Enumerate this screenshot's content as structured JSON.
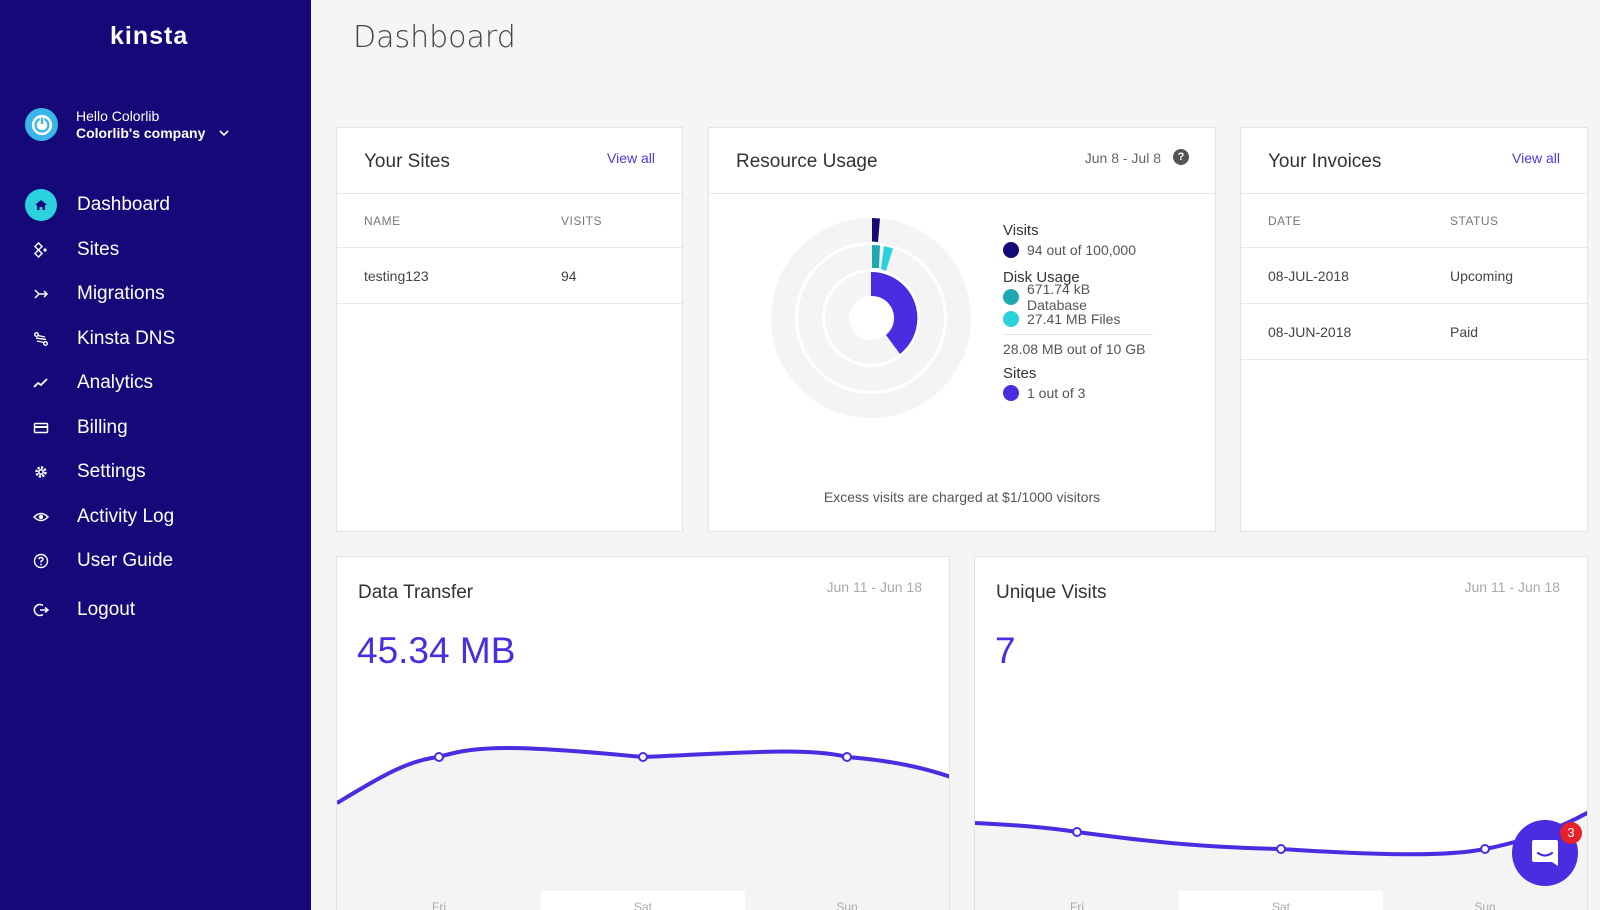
{
  "brand": {
    "logo": "kinsta"
  },
  "user": {
    "greeting": "Hello Colorlib",
    "company": "Colorlib's company"
  },
  "nav": [
    {
      "label": "Dashboard",
      "icon": "home-icon",
      "active": true
    },
    {
      "label": "Sites",
      "icon": "sites-icon"
    },
    {
      "label": "Migrations",
      "icon": "migrations-icon"
    },
    {
      "label": "Kinsta DNS",
      "icon": "dns-icon"
    },
    {
      "label": "Analytics",
      "icon": "analytics-icon"
    },
    {
      "label": "Billing",
      "icon": "billing-icon"
    },
    {
      "label": "Settings",
      "icon": "gear-icon"
    },
    {
      "label": "Activity Log",
      "icon": "eye-icon"
    },
    {
      "label": "User Guide",
      "icon": "help-icon"
    },
    {
      "label": "Logout",
      "icon": "logout-icon"
    }
  ],
  "page": {
    "title": "Dashboard"
  },
  "sites_card": {
    "title": "Your Sites",
    "view_all": "View all",
    "columns": [
      "NAME",
      "VISITS"
    ],
    "rows": [
      {
        "name": "testing123",
        "visits": "94"
      }
    ]
  },
  "resource_card": {
    "title": "Resource Usage",
    "range": "Jun 8 - Jul 8",
    "help": "?",
    "visits_title": "Visits",
    "visits_value": "94 out of 100,000",
    "disk_title": "Disk Usage",
    "disk_db": "671.74 kB Database",
    "disk_files": "27.41 MB Files",
    "disk_total": "28.08 MB out of 10 GB",
    "sites_title": "Sites",
    "sites_value": "1 out of 3",
    "note": "Excess visits are charged at $1/1000 visitors",
    "colors": {
      "visits": "#15097a",
      "database": "#1fa8b0",
      "files": "#2bd1dd",
      "sites": "#4a2de0"
    }
  },
  "invoices_card": {
    "title": "Your Invoices",
    "view_all": "View all",
    "columns": [
      "DATE",
      "STATUS"
    ],
    "rows": [
      {
        "date": "08-JUL-2018",
        "status": "Upcoming"
      },
      {
        "date": "08-JUN-2018",
        "status": "Paid"
      }
    ]
  },
  "data_transfer": {
    "title": "Data Transfer",
    "range": "Jun 11 - Jun 18",
    "value": "45.34 MB"
  },
  "unique_visits": {
    "title": "Unique Visits",
    "range": "Jun 11 - Jun 18",
    "value": "7"
  },
  "chart_data": [
    {
      "type": "line",
      "title": "Data Transfer",
      "categories": [
        "Fri",
        "Sat",
        "Sun"
      ],
      "series": [
        {
          "values": [
            0.55,
            0.56,
            0.56
          ]
        }
      ]
    },
    {
      "type": "line",
      "title": "Unique Visits",
      "categories": [
        "Fri",
        "Sat",
        "Sun"
      ],
      "series": [
        {
          "values": [
            0.2,
            0.12,
            0.12
          ]
        }
      ]
    }
  ],
  "chat": {
    "badge": "3"
  }
}
